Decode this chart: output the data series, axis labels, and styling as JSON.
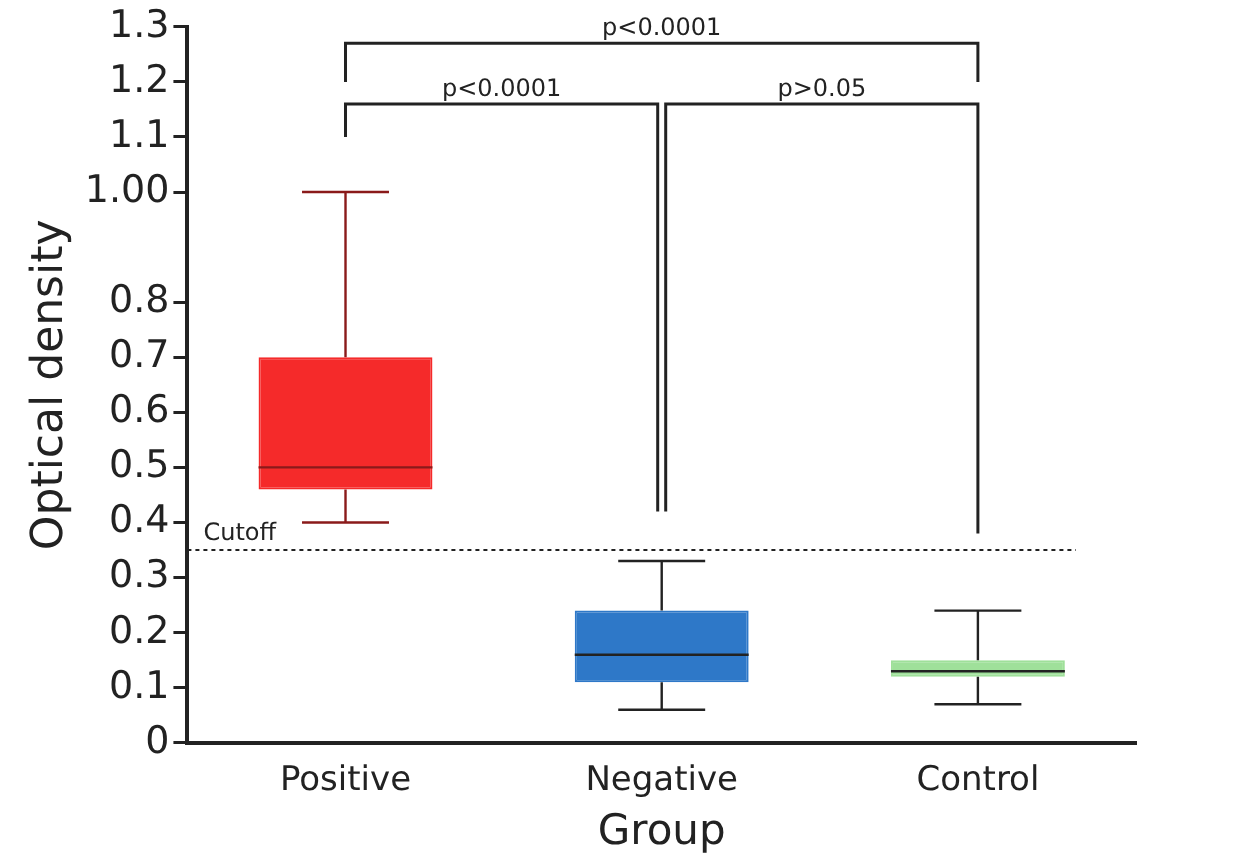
{
  "chart_data": {
    "type": "box",
    "xlabel": "Group",
    "ylabel": "Optical density",
    "categories": [
      "Positive",
      "Negative",
      "Control"
    ],
    "colors": [
      "#f52a2a",
      "#2e78c8",
      "#9fe09a"
    ],
    "boxes": [
      {
        "low": 0.4,
        "q1": 0.46,
        "median": 0.5,
        "q3": 0.7,
        "high": 1.0
      },
      {
        "low": 0.06,
        "q1": 0.11,
        "median": 0.16,
        "q3": 0.24,
        "high": 0.33
      },
      {
        "low": 0.07,
        "q1": 0.12,
        "median": 0.13,
        "q3": 0.15,
        "high": 0.24
      }
    ],
    "ylim": [
      0,
      1.3
    ],
    "yticks": [
      0,
      0.1,
      0.2,
      0.3,
      0.4,
      0.5,
      0.6,
      0.7,
      0.8,
      {
        "value": 1.0,
        "label": "1.00"
      },
      1.1,
      1.2,
      1.3
    ],
    "ref_lines": [
      {
        "axis": "y",
        "value": 0.35,
        "label": "Cutoff",
        "line_style": "dotted"
      }
    ],
    "annotations": [
      "p<0.0001",
      "p<0.0001",
      "p>0.05"
    ],
    "grid": false,
    "legend": false
  }
}
